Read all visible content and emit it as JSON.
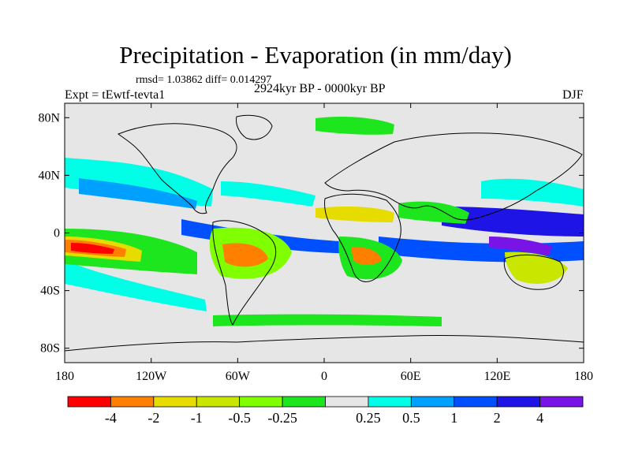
{
  "title": "Precipitation - Evaporation (in mm/day)",
  "stats": "rmsd= 1.03862  diff= 0.014297",
  "experiment": "Expt = tEwtf-tevta1",
  "period": "2924kyr BP - 0000kyr BP",
  "season": "DJF",
  "map": {
    "projection": "cylindrical-equidistant",
    "lon_range": [
      -180,
      180
    ],
    "lat_range": [
      -90,
      90
    ],
    "background_color": "#e6e6e6",
    "lat_ticks": [
      {
        "lat": 80,
        "label": "80N"
      },
      {
        "lat": 40,
        "label": "40N"
      },
      {
        "lat": 0,
        "label": "0"
      },
      {
        "lat": -40,
        "label": "40S"
      },
      {
        "lat": -80,
        "label": "80S"
      }
    ],
    "lon_ticks": [
      {
        "lon": -180,
        "label": "180"
      },
      {
        "lon": -120,
        "label": "120W"
      },
      {
        "lon": -60,
        "label": "60W"
      },
      {
        "lon": 0,
        "label": "0"
      },
      {
        "lon": 60,
        "label": "60E"
      },
      {
        "lon": 120,
        "label": "120E"
      },
      {
        "lon": 180,
        "label": "180"
      }
    ]
  },
  "colorbar": {
    "colors": [
      "#ff0000",
      "#ff8000",
      "#e6dc00",
      "#c8e600",
      "#80ff00",
      "#1ee61e",
      "#e6e6e6",
      "#00ffe6",
      "#00a0ff",
      "#0050ff",
      "#1e14e6",
      "#7814e6"
    ],
    "labels": [
      "-4",
      "-2",
      "-1",
      "-0.5",
      "-0.25",
      "0.25",
      "0.5",
      "1",
      "2",
      "4"
    ]
  }
}
